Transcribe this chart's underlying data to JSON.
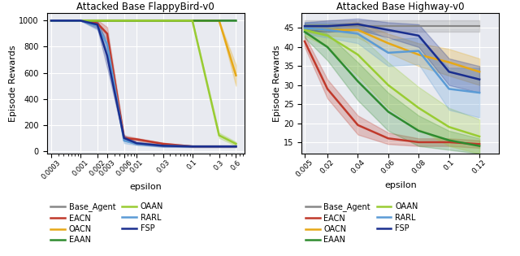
{
  "fig_width": 6.4,
  "fig_height": 3.15,
  "bg_color": "#e8eaf0",
  "plot1": {
    "title": "Attacked Base FlappyBird-v0",
    "xlabel": "epsilon",
    "ylabel": "Episode Rewards",
    "xticks": [
      0.0003,
      0.001,
      0.002,
      0.003,
      0.006,
      0.01,
      0.03,
      0.1,
      0.3,
      0.6
    ],
    "xlim": [
      0.00025,
      0.85
    ],
    "ylim": [
      -20,
      1060
    ],
    "yticks": [
      0,
      200,
      400,
      600,
      800,
      1000
    ],
    "series": {
      "Base_Agent": {
        "x": [
          0.0003,
          0.001,
          0.002,
          0.003,
          0.006,
          0.01,
          0.03,
          0.1,
          0.3,
          0.6
        ],
        "y": [
          1000,
          1000,
          1000,
          1000,
          1000,
          1000,
          1000,
          1000,
          1000,
          1000
        ],
        "y_std": [
          0,
          0,
          0,
          0,
          0,
          0,
          0,
          0,
          0,
          0
        ],
        "color": "#888888",
        "lw": 1.5
      },
      "EACN": {
        "x": [
          0.0003,
          0.001,
          0.002,
          0.003,
          0.006,
          0.01,
          0.03,
          0.1,
          0.3,
          0.6
        ],
        "y": [
          1000,
          1000,
          980,
          900,
          100,
          90,
          55,
          35,
          35,
          35
        ],
        "y_std": [
          0,
          0,
          25,
          50,
          20,
          10,
          8,
          5,
          5,
          5
        ],
        "color": "#c0392b",
        "lw": 1.8
      },
      "OACN": {
        "x": [
          0.0003,
          0.001,
          0.002,
          0.003,
          0.006,
          0.01,
          0.03,
          0.1,
          0.3,
          0.6
        ],
        "y": [
          1000,
          1000,
          1000,
          1000,
          1000,
          1000,
          1000,
          1000,
          1000,
          580
        ],
        "y_std": [
          0,
          0,
          0,
          0,
          0,
          0,
          0,
          0,
          0,
          80
        ],
        "color": "#e6a817",
        "lw": 1.8
      },
      "EAAN": {
        "x": [
          0.0003,
          0.001,
          0.002,
          0.003,
          0.006,
          0.01,
          0.03,
          0.1,
          0.3,
          0.6
        ],
        "y": [
          1000,
          1000,
          1000,
          1000,
          1000,
          1000,
          1000,
          1000,
          1000,
          1000
        ],
        "y_std": [
          0,
          0,
          0,
          0,
          0,
          0,
          0,
          0,
          0,
          0
        ],
        "color": "#2e8b2e",
        "lw": 1.8
      },
      "OAAN": {
        "x": [
          0.0003,
          0.001,
          0.002,
          0.003,
          0.006,
          0.01,
          0.03,
          0.1,
          0.3,
          0.6
        ],
        "y": [
          1000,
          1000,
          1000,
          1000,
          1000,
          1000,
          1000,
          1000,
          120,
          55
        ],
        "y_std": [
          0,
          0,
          0,
          0,
          0,
          0,
          0,
          0,
          20,
          15
        ],
        "color": "#99cc33",
        "lw": 1.8
      },
      "RARL": {
        "x": [
          0.0003,
          0.001,
          0.002,
          0.003,
          0.006,
          0.01,
          0.03,
          0.1,
          0.3,
          0.6
        ],
        "y": [
          1000,
          1000,
          960,
          820,
          80,
          55,
          40,
          35,
          35,
          35
        ],
        "y_std": [
          0,
          0,
          30,
          70,
          20,
          10,
          8,
          5,
          5,
          5
        ],
        "color": "#5b9bd5",
        "lw": 1.8
      },
      "FSP": {
        "x": [
          0.0003,
          0.001,
          0.002,
          0.003,
          0.006,
          0.01,
          0.03,
          0.1,
          0.3,
          0.6
        ],
        "y": [
          1000,
          1000,
          970,
          730,
          100,
          60,
          40,
          35,
          35,
          35
        ],
        "y_std": [
          0,
          0,
          30,
          90,
          20,
          10,
          8,
          5,
          5,
          5
        ],
        "color": "#1a2f8f",
        "lw": 1.8
      }
    }
  },
  "plot2": {
    "title": "Attacked Base Highway-v0",
    "xlabel": "epsilon",
    "ylabel": "Episode Rewards",
    "xticks": [
      0.005,
      0.02,
      0.04,
      0.06,
      0.08,
      0.1,
      0.12
    ],
    "xlim": [
      0.003,
      0.133
    ],
    "ylim": [
      12,
      49
    ],
    "yticks": [
      15,
      20,
      25,
      30,
      35,
      40,
      45
    ],
    "series": {
      "Base_Agent": {
        "x": [
          0.005,
          0.02,
          0.04,
          0.06,
          0.08,
          0.1,
          0.12
        ],
        "y": [
          45.5,
          45.5,
          45.5,
          45.5,
          45.5,
          45.5,
          45.5
        ],
        "y_std": [
          1.5,
          1.5,
          1.5,
          1.5,
          1.5,
          1.5,
          1.5
        ],
        "color": "#888888",
        "lw": 1.5
      },
      "EACN": {
        "x": [
          0.005,
          0.02,
          0.04,
          0.06,
          0.08,
          0.1,
          0.12
        ],
        "y": [
          41.5,
          29.0,
          19.5,
          16.0,
          15.0,
          15.0,
          14.5
        ],
        "y_std": [
          1.5,
          2.5,
          2.5,
          1.5,
          1.0,
          1.0,
          1.0
        ],
        "color": "#c0392b",
        "lw": 1.8
      },
      "OACN": {
        "x": [
          0.005,
          0.02,
          0.04,
          0.06,
          0.08,
          0.1,
          0.12
        ],
        "y": [
          45.0,
          44.5,
          44.5,
          41.0,
          38.0,
          36.0,
          33.5
        ],
        "y_std": [
          1.0,
          1.5,
          2.0,
          2.5,
          3.0,
          3.5,
          3.5
        ],
        "color": "#e6a817",
        "lw": 1.8
      },
      "EAAN": {
        "x": [
          0.005,
          0.02,
          0.04,
          0.06,
          0.08,
          0.1,
          0.12
        ],
        "y": [
          44.0,
          40.0,
          31.0,
          23.0,
          18.0,
          15.5,
          14.0
        ],
        "y_std": [
          1.5,
          3.5,
          5.0,
          5.0,
          4.0,
          2.5,
          2.0
        ],
        "color": "#2e8b2e",
        "lw": 1.8
      },
      "OAAN": {
        "x": [
          0.005,
          0.02,
          0.04,
          0.06,
          0.08,
          0.1,
          0.12
        ],
        "y": [
          44.5,
          43.0,
          38.0,
          30.0,
          24.0,
          19.0,
          16.5
        ],
        "y_std": [
          1.5,
          3.0,
          5.5,
          6.0,
          5.5,
          5.0,
          4.5
        ],
        "color": "#99cc33",
        "lw": 1.8
      },
      "RARL": {
        "x": [
          0.005,
          0.02,
          0.04,
          0.06,
          0.08,
          0.1,
          0.12
        ],
        "y": [
          45.0,
          44.5,
          43.5,
          38.5,
          39.0,
          29.0,
          28.0
        ],
        "y_std": [
          1.5,
          2.0,
          2.5,
          3.5,
          3.5,
          5.5,
          6.5
        ],
        "color": "#5b9bd5",
        "lw": 1.8
      },
      "FSP": {
        "x": [
          0.005,
          0.02,
          0.04,
          0.06,
          0.08,
          0.1,
          0.12
        ],
        "y": [
          45.5,
          45.5,
          46.0,
          44.5,
          43.0,
          33.5,
          31.5
        ],
        "y_std": [
          1.0,
          1.5,
          1.5,
          2.0,
          3.0,
          3.5,
          3.5
        ],
        "color": "#1a2f8f",
        "lw": 1.8
      }
    }
  },
  "legend_order": [
    "Base_Agent",
    "EACN",
    "OACN",
    "EAAN",
    "OAAN",
    "RARL",
    "FSP"
  ],
  "legend_labels": {
    "Base_Agent": "Base_Agent",
    "EACN": "EACN",
    "OACN": "OACN",
    "EAAN": "EAAN",
    "OAAN": "OAAN",
    "RARL": "RARL",
    "FSP": "FSP"
  }
}
